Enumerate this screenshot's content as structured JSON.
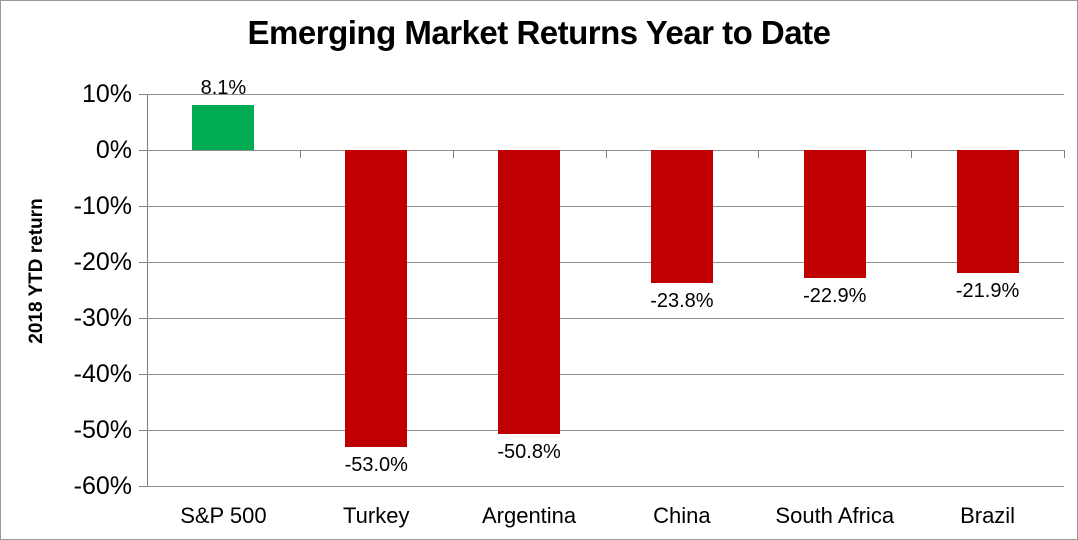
{
  "page": {
    "background": "#FFFFFF",
    "border_color": "#999999"
  },
  "chart_data": {
    "type": "bar",
    "title": "Emerging Market Returns Year to Date",
    "xlabel": "",
    "ylabel": "2018 YTD return",
    "categories": [
      "S&P 500",
      "Turkey",
      "Argentina",
      "China",
      "South Africa",
      "Brazil"
    ],
    "values": [
      8.1,
      -53.0,
      -50.8,
      -23.8,
      -22.9,
      -21.9
    ],
    "data_labels": [
      "8.1%",
      "-53.0%",
      "-50.8%",
      "-23.8%",
      "-22.9%",
      "-21.9%"
    ],
    "bar_colors": [
      "#00AB52",
      "#C00000",
      "#C00000",
      "#C00000",
      "#C00000",
      "#C00000"
    ],
    "positive_color": "#00AB52",
    "negative_color": "#C00000",
    "ylim": [
      -60,
      10
    ],
    "ytick_step": 10,
    "ytick_labels": [
      "10%",
      "0%",
      "-10%",
      "-20%",
      "-30%",
      "-40%",
      "-50%",
      "-60%"
    ],
    "grid": "horizontal-only",
    "gridline_color": "#909090",
    "axis_color": "#808080",
    "legend": "none"
  }
}
